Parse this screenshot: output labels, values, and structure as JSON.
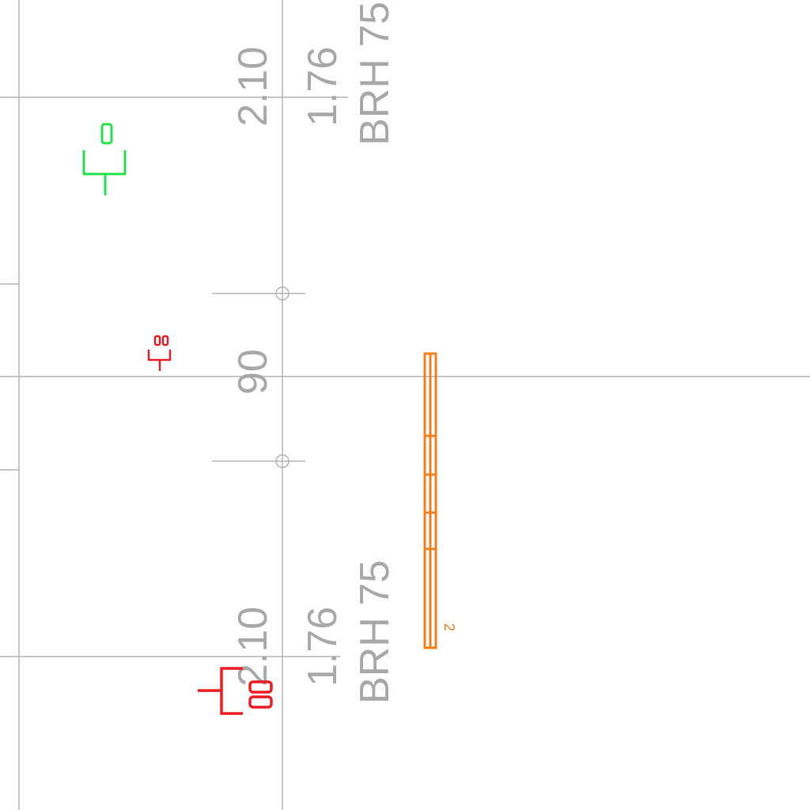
{
  "drawing": {
    "upper_annotation": {
      "height": "2.10",
      "width": "1.76",
      "sill": "BRH 75"
    },
    "lower_annotation": {
      "height": "2.10",
      "width": "1.76",
      "sill": "BRH 75"
    },
    "middle_dimension": "90",
    "beam_label": "2",
    "colors": {
      "grid": "#a8a8a8",
      "green_symbol": "#22e14a",
      "red_symbol": "#ee1c24",
      "beam": "#f07f1e",
      "background": "#ffffff"
    },
    "icons": [
      "socket-symbol-green",
      "socket-symbol-red-small",
      "socket-symbol-red-large"
    ]
  }
}
